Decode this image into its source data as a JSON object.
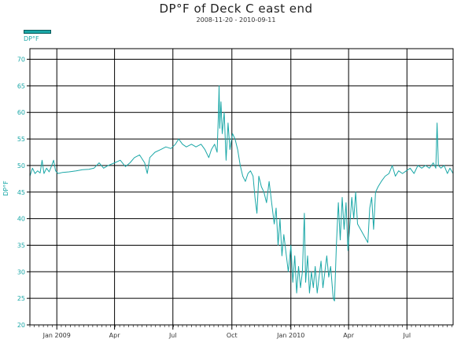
{
  "chart_data": {
    "type": "line",
    "title": "DP°F of Deck C east end",
    "subtitle": "2008-11-20 - 2010-09-11",
    "ylabel": "DP°F",
    "xlabel": "",
    "ylim": [
      20,
      72
    ],
    "yticks": [
      20,
      25,
      30,
      35,
      40,
      45,
      50,
      55,
      60,
      65,
      70
    ],
    "xrange": [
      "2008-11-20",
      "2010-09-11"
    ],
    "xticks": [
      {
        "date": "2009-01-01",
        "label": "Jan 2009"
      },
      {
        "date": "2009-04-01",
        "label": "Apr"
      },
      {
        "date": "2009-07-01",
        "label": "Jul"
      },
      {
        "date": "2009-10-01",
        "label": "Oct"
      },
      {
        "date": "2010-01-01",
        "label": "Jan 2010"
      },
      {
        "date": "2010-04-01",
        "label": "Apr"
      },
      {
        "date": "2010-07-01",
        "label": "Jul"
      }
    ],
    "grid": true,
    "legend_position": "top-left",
    "series": [
      {
        "name": "DP°F",
        "color": "#1aa7a7",
        "points": [
          [
            "2008-11-20",
            48
          ],
          [
            "2008-11-24",
            49.5
          ],
          [
            "2008-11-28",
            48.5
          ],
          [
            "2008-12-02",
            49
          ],
          [
            "2008-12-06",
            48.6
          ],
          [
            "2008-12-09",
            51
          ],
          [
            "2008-12-12",
            48.5
          ],
          [
            "2008-12-16",
            49.5
          ],
          [
            "2008-12-20",
            48.8
          ],
          [
            "2008-12-24",
            50
          ],
          [
            "2008-12-27",
            51
          ],
          [
            "2008-12-30",
            49
          ],
          [
            "2009-01-03",
            48.5
          ],
          [
            "2009-01-10",
            48.7
          ],
          [
            "2009-01-20",
            48.8
          ],
          [
            "2009-01-31",
            49
          ],
          [
            "2009-02-10",
            49.2
          ],
          [
            "2009-02-20",
            49.3
          ],
          [
            "2009-02-28",
            49.5
          ],
          [
            "2009-03-08",
            50.5
          ],
          [
            "2009-03-15",
            49.5
          ],
          [
            "2009-03-22",
            50
          ],
          [
            "2009-04-01",
            50.5
          ],
          [
            "2009-04-10",
            51
          ],
          [
            "2009-04-18",
            49.8
          ],
          [
            "2009-04-25",
            50.5
          ],
          [
            "2009-05-02",
            51.5
          ],
          [
            "2009-05-10",
            52
          ],
          [
            "2009-05-18",
            50.5
          ],
          [
            "2009-05-22",
            48.5
          ],
          [
            "2009-05-26",
            51.5
          ],
          [
            "2009-06-03",
            52.5
          ],
          [
            "2009-06-12",
            53
          ],
          [
            "2009-06-20",
            53.5
          ],
          [
            "2009-06-28",
            53.2
          ],
          [
            "2009-07-05",
            54
          ],
          [
            "2009-07-10",
            55
          ],
          [
            "2009-07-16",
            54
          ],
          [
            "2009-07-22",
            53.5
          ],
          [
            "2009-07-30",
            54
          ],
          [
            "2009-08-06",
            53.5
          ],
          [
            "2009-08-14",
            54
          ],
          [
            "2009-08-20",
            53
          ],
          [
            "2009-08-26",
            51.5
          ],
          [
            "2009-08-30",
            53
          ],
          [
            "2009-09-04",
            54
          ],
          [
            "2009-09-08",
            52.5
          ],
          [
            "2009-09-10",
            60
          ],
          [
            "2009-09-11",
            65
          ],
          [
            "2009-09-12",
            57
          ],
          [
            "2009-09-14",
            62
          ],
          [
            "2009-09-16",
            56
          ],
          [
            "2009-09-19",
            60
          ],
          [
            "2009-09-22",
            51
          ],
          [
            "2009-09-25",
            58
          ],
          [
            "2009-09-28",
            53
          ],
          [
            "2009-10-02",
            56
          ],
          [
            "2009-10-06",
            55
          ],
          [
            "2009-10-10",
            53
          ],
          [
            "2009-10-14",
            50
          ],
          [
            "2009-10-18",
            48
          ],
          [
            "2009-10-22",
            47
          ],
          [
            "2009-10-26",
            48.5
          ],
          [
            "2009-10-30",
            49
          ],
          [
            "2009-11-03",
            48
          ],
          [
            "2009-11-06",
            44
          ],
          [
            "2009-11-09",
            41
          ],
          [
            "2009-11-12",
            48
          ],
          [
            "2009-11-16",
            46
          ],
          [
            "2009-11-20",
            45
          ],
          [
            "2009-11-24",
            43
          ],
          [
            "2009-11-28",
            47
          ],
          [
            "2009-12-02",
            43
          ],
          [
            "2009-12-06",
            39
          ],
          [
            "2009-12-09",
            42
          ],
          [
            "2009-12-12",
            35
          ],
          [
            "2009-12-15",
            40
          ],
          [
            "2009-12-18",
            33
          ],
          [
            "2009-12-21",
            37
          ],
          [
            "2009-12-24",
            34
          ],
          [
            "2009-12-28",
            30
          ],
          [
            "2010-01-01",
            35
          ],
          [
            "2010-01-04",
            28
          ],
          [
            "2010-01-07",
            33
          ],
          [
            "2010-01-10",
            26
          ],
          [
            "2010-01-13",
            31
          ],
          [
            "2010-01-16",
            27
          ],
          [
            "2010-01-19",
            30
          ],
          [
            "2010-01-22",
            41
          ],
          [
            "2010-01-24",
            28
          ],
          [
            "2010-01-27",
            33
          ],
          [
            "2010-01-30",
            26
          ],
          [
            "2010-02-02",
            30
          ],
          [
            "2010-02-05",
            27
          ],
          [
            "2010-02-08",
            31
          ],
          [
            "2010-02-11",
            26
          ],
          [
            "2010-02-14",
            29
          ],
          [
            "2010-02-17",
            32
          ],
          [
            "2010-02-20",
            27
          ],
          [
            "2010-02-23",
            30
          ],
          [
            "2010-02-26",
            33
          ],
          [
            "2010-03-01",
            29
          ],
          [
            "2010-03-04",
            31
          ],
          [
            "2010-03-08",
            25
          ],
          [
            "2010-03-10",
            24.5
          ],
          [
            "2010-03-13",
            35
          ],
          [
            "2010-03-16",
            43
          ],
          [
            "2010-03-19",
            36
          ],
          [
            "2010-03-22",
            44
          ],
          [
            "2010-03-25",
            38
          ],
          [
            "2010-03-28",
            43
          ],
          [
            "2010-03-31",
            34
          ],
          [
            "2010-04-03",
            39
          ],
          [
            "2010-04-06",
            44
          ],
          [
            "2010-04-09",
            40
          ],
          [
            "2010-04-12",
            45
          ],
          [
            "2010-04-15",
            39
          ],
          [
            "2010-05-01",
            35.5
          ],
          [
            "2010-05-04",
            42
          ],
          [
            "2010-05-07",
            44
          ],
          [
            "2010-05-10",
            38
          ],
          [
            "2010-05-13",
            45
          ],
          [
            "2010-05-17",
            46
          ],
          [
            "2010-05-22",
            47
          ],
          [
            "2010-05-28",
            48
          ],
          [
            "2010-06-03",
            48.5
          ],
          [
            "2010-06-08",
            50
          ],
          [
            "2010-06-13",
            48
          ],
          [
            "2010-06-18",
            49
          ],
          [
            "2010-06-24",
            48.5
          ],
          [
            "2010-06-30",
            49
          ],
          [
            "2010-07-06",
            49.5
          ],
          [
            "2010-07-12",
            48.5
          ],
          [
            "2010-07-18",
            50
          ],
          [
            "2010-07-24",
            49.5
          ],
          [
            "2010-07-30",
            50
          ],
          [
            "2010-08-05",
            49.5
          ],
          [
            "2010-08-11",
            50.5
          ],
          [
            "2010-08-15",
            49.5
          ],
          [
            "2010-08-17",
            58
          ],
          [
            "2010-08-19",
            50
          ],
          [
            "2010-08-23",
            49.5
          ],
          [
            "2010-08-28",
            50
          ],
          [
            "2010-09-02",
            48.5
          ],
          [
            "2010-09-06",
            49.5
          ],
          [
            "2010-09-11",
            48.5
          ]
        ]
      }
    ]
  }
}
